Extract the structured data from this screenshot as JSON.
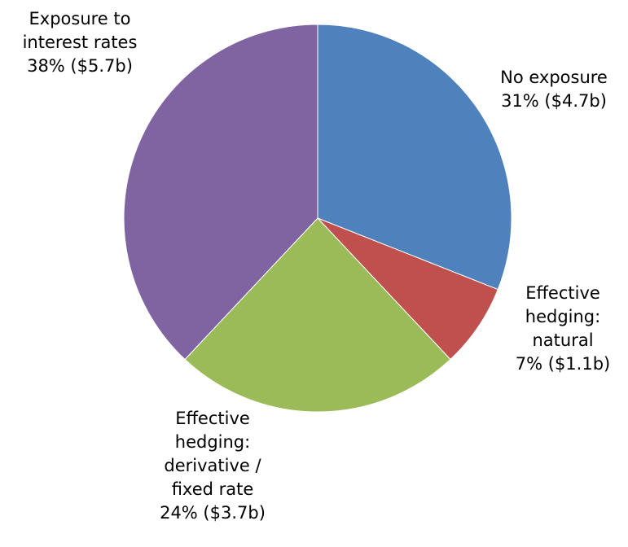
{
  "chart_data": {
    "type": "pie",
    "title": "",
    "unit": "$b",
    "slices": [
      {
        "key": "no-exposure",
        "label_lines": [
          "No exposure",
          "31% ($4.7b)"
        ],
        "percent": 31,
        "value": 4.7,
        "color": "#4F81BD"
      },
      {
        "key": "effective-hedging-natural",
        "label_lines": [
          "Effective",
          "hedging:",
          "natural",
          "7% ($1.1b)"
        ],
        "percent": 7,
        "value": 1.1,
        "color": "#C0504D"
      },
      {
        "key": "effective-hedging-derivative",
        "label_lines": [
          "Effective",
          "hedging:",
          "derivative /",
          "fixed rate",
          "24% ($3.7b)"
        ],
        "percent": 24,
        "value": 3.7,
        "color": "#9BBB59"
      },
      {
        "key": "exposure-to-interest-rates",
        "label_lines": [
          "Exposure to",
          "interest rates",
          "38% ($5.7b)"
        ],
        "percent": 38,
        "value": 5.7,
        "color": "#8064A2"
      }
    ],
    "start_angle_deg": 0,
    "direction": "clockwise",
    "legend": "none"
  }
}
